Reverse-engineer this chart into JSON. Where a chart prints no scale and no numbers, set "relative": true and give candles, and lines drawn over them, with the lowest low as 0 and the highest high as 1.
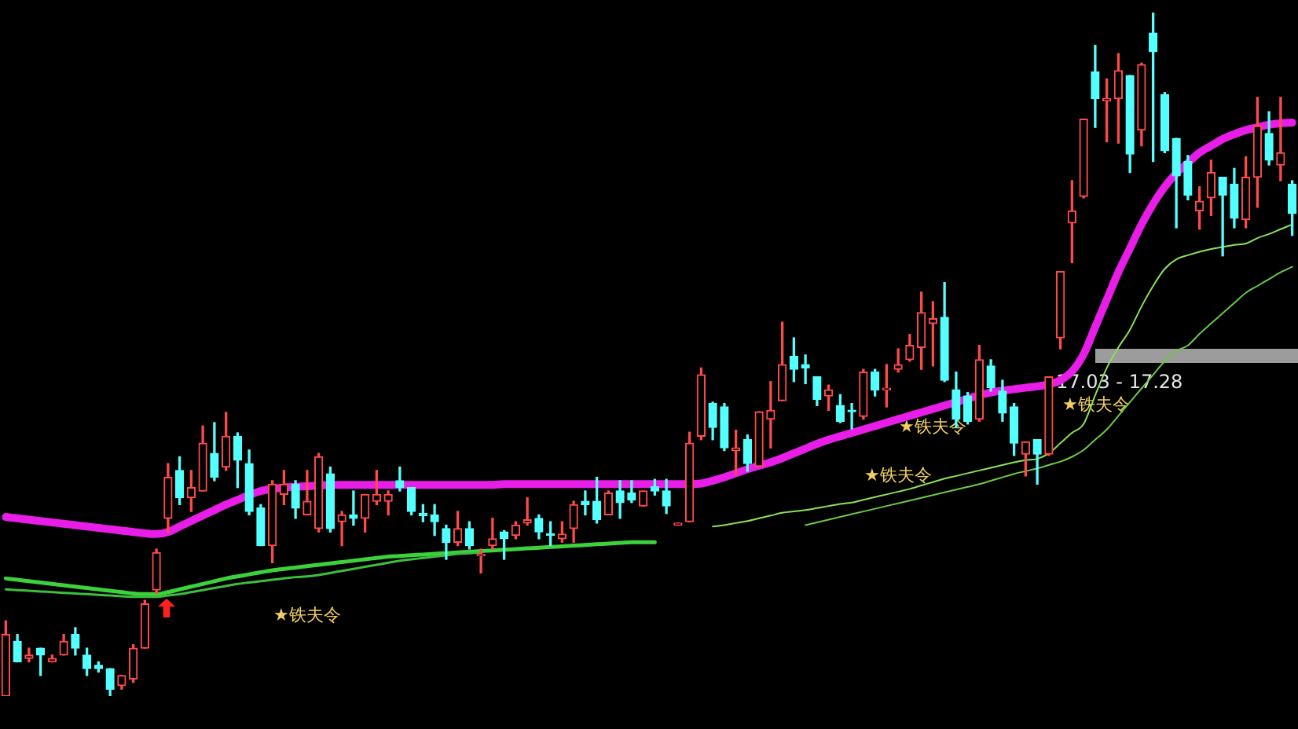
{
  "chart_data": {
    "type": "candlestick",
    "relative": true,
    "legend": false,
    "marker": "none",
    "categories": [
      null,
      null,
      null,
      null,
      null,
      null,
      null,
      null,
      null,
      null,
      null,
      null,
      null,
      null,
      null,
      null,
      null,
      null,
      null,
      null,
      null,
      null,
      null,
      null,
      null,
      null,
      null,
      null,
      null,
      null,
      null,
      null,
      null,
      null,
      null,
      null,
      null,
      null,
      null,
      null,
      null,
      null,
      null,
      null,
      null,
      null,
      null,
      null,
      null,
      null,
      null,
      null,
      null,
      null,
      null,
      null,
      null,
      null,
      null,
      null,
      null,
      null,
      null,
      null,
      null,
      null,
      null,
      null,
      null,
      null,
      null,
      null,
      null,
      null,
      null,
      null,
      null,
      null,
      null,
      null,
      null,
      null,
      null,
      null,
      null,
      null,
      null,
      null,
      null,
      null,
      null,
      null,
      null,
      null,
      null,
      null,
      null,
      null,
      null,
      null,
      null,
      null,
      null,
      null,
      null,
      null,
      null,
      null,
      null,
      null,
      null,
      null
    ],
    "ohlc": [
      [
        0,
        0.11,
        0,
        0.09
      ],
      [
        0.08,
        0.09,
        0.05,
        0.05
      ],
      [
        0.055,
        0.07,
        0.05,
        0.06
      ],
      [
        0.07,
        0.07,
        0.03,
        0.06
      ],
      [
        0.05,
        0.06,
        0.05,
        0.055
      ],
      [
        0.06,
        0.09,
        0.06,
        0.08
      ],
      [
        0.09,
        0.1,
        0.06,
        0.07
      ],
      [
        0.06,
        0.07,
        0.03,
        0.04
      ],
      [
        0.045,
        0.05,
        0.035,
        0.04
      ],
      [
        0.04,
        0.04,
        0,
        0.01
      ],
      [
        0.015,
        0.03,
        0.01,
        0.03
      ],
      [
        0.025,
        0.075,
        0.02,
        0.07
      ],
      [
        0.07,
        0.14,
        0.07,
        0.135
      ],
      [
        0.155,
        0.215,
        0.15,
        0.21
      ],
      [
        0.26,
        0.34,
        0.24,
        0.32
      ],
      [
        0.33,
        0.35,
        0.28,
        0.29
      ],
      [
        0.29,
        0.33,
        0.27,
        0.305
      ],
      [
        0.3,
        0.395,
        0.3,
        0.37
      ],
      [
        0.355,
        0.4,
        0.315,
        0.32
      ],
      [
        0.335,
        0.415,
        0.33,
        0.38
      ],
      [
        0.38,
        0.385,
        0.305,
        0.345
      ],
      [
        0.34,
        0.36,
        0.265,
        0.27
      ],
      [
        0.275,
        0.28,
        0.22,
        0.22
      ],
      [
        0.22,
        0.315,
        0.195,
        0.31
      ],
      [
        0.295,
        0.33,
        0.28,
        0.31
      ],
      [
        0.31,
        0.315,
        0.26,
        0.275
      ],
      [
        0.265,
        0.33,
        0.265,
        0.285
      ],
      [
        0.245,
        0.355,
        0.24,
        0.35
      ],
      [
        0.325,
        0.335,
        0.24,
        0.245
      ],
      [
        0.255,
        0.27,
        0.22,
        0.265
      ],
      [
        0.265,
        0.3,
        0.25,
        0.26
      ],
      [
        0.26,
        0.295,
        0.24,
        0.295
      ],
      [
        0.285,
        0.33,
        0.28,
        0.295
      ],
      [
        0.285,
        0.3,
        0.265,
        0.295
      ],
      [
        0.315,
        0.335,
        0.3,
        0.305
      ],
      [
        0.305,
        0.305,
        0.265,
        0.27
      ],
      [
        0.267,
        0.28,
        0.255,
        0.264
      ],
      [
        0.265,
        0.28,
        0.235,
        0.255
      ],
      [
        0.245,
        0.25,
        0.2,
        0.225
      ],
      [
        0.225,
        0.27,
        0.22,
        0.245
      ],
      [
        0.245,
        0.255,
        0.215,
        0.22
      ],
      [
        0.205,
        0.215,
        0.18,
        0.207
      ],
      [
        0.22,
        0.26,
        0.215,
        0.23
      ],
      [
        0.24,
        0.242,
        0.2,
        0.23
      ],
      [
        0.235,
        0.255,
        0.23,
        0.25
      ],
      [
        0.253,
        0.29,
        0.25,
        0.258
      ],
      [
        0.26,
        0.265,
        0.23,
        0.24
      ],
      [
        0.237,
        0.255,
        0.22,
        0.235
      ],
      [
        0.23,
        0.255,
        0.225,
        0.237
      ],
      [
        0.245,
        0.285,
        0.225,
        0.28
      ],
      [
        0.285,
        0.3,
        0.265,
        0.28
      ],
      [
        0.285,
        0.32,
        0.253,
        0.258
      ],
      [
        0.265,
        0.3,
        0.265,
        0.297
      ],
      [
        0.3,
        0.315,
        0.26,
        0.283
      ],
      [
        0.297,
        0.315,
        0.283,
        0.287
      ],
      [
        0.278,
        0.3,
        0.278,
        0.3
      ],
      [
        0.306,
        0.317,
        0.294,
        0.3
      ],
      [
        0.3,
        0.317,
        0.267,
        0.278
      ],
      [
        0.25,
        0.253,
        0.25,
        0.253
      ],
      [
        0.255,
        0.386,
        0.255,
        0.37
      ],
      [
        0.38,
        0.48,
        0.375,
        0.47
      ],
      [
        0.428,
        0.43,
        0.375,
        0.393
      ],
      [
        0.423,
        0.428,
        0.359,
        0.363
      ],
      [
        0.359,
        0.389,
        0.324,
        0.363
      ],
      [
        0.375,
        0.382,
        0.329,
        0.34
      ],
      [
        0.336,
        0.416,
        0.336,
        0.416
      ],
      [
        0.405,
        0.46,
        0.363,
        0.418
      ],
      [
        0.432,
        0.547,
        0.432,
        0.485
      ],
      [
        0.497,
        0.524,
        0.46,
        0.478
      ],
      [
        0.485,
        0.499,
        0.457,
        0.48
      ],
      [
        0.467,
        0.467,
        0.425,
        0.434
      ],
      [
        0.439,
        0.455,
        0.418,
        0.448
      ],
      [
        0.425,
        0.441,
        0.4,
        0.402
      ],
      [
        0.418,
        0.428,
        0.391,
        0.416
      ],
      [
        0.409,
        0.478,
        0.405,
        0.474
      ],
      [
        0.474,
        0.478,
        0.439,
        0.448
      ],
      [
        0.448,
        0.485,
        0.423,
        0.45
      ],
      [
        0.478,
        0.508,
        0.474,
        0.485
      ],
      [
        0.492,
        0.529,
        0.49,
        0.513
      ],
      [
        0.51,
        0.591,
        0.478,
        0.561
      ],
      [
        0.545,
        0.577,
        0.483,
        0.552
      ],
      [
        0.554,
        0.605,
        0.46,
        0.462
      ],
      [
        0.448,
        0.474,
        0.393,
        0.405
      ],
      [
        0.439,
        0.444,
        0.398,
        0.402
      ],
      [
        0.405,
        0.513,
        0.402,
        0.492
      ],
      [
        0.483,
        0.492,
        0.446,
        0.451
      ],
      [
        0.446,
        0.462,
        0.402,
        0.414
      ],
      [
        0.423,
        0.428,
        0.352,
        0.37
      ],
      [
        0.354,
        0.372,
        0.322,
        0.372
      ],
      [
        0.375,
        0.375,
        0.31,
        0.354
      ],
      [
        0.354,
        0.467,
        0.352,
        0.467
      ],
      [
        0.524,
        0.621,
        0.508,
        0.621
      ],
      [
        0.692,
        0.754,
        0.634,
        0.71
      ],
      [
        0.731,
        0.844,
        0.729,
        0.844
      ],
      [
        0.913,
        0.952,
        0.832,
        0.874
      ],
      [
        0.871,
        0.903,
        0.811,
        0.874
      ],
      [
        0.874,
        0.94,
        0.809,
        0.915
      ],
      [
        0.908,
        0.908,
        0.766,
        0.793
      ],
      [
        0.828,
        0.926,
        0.805,
        0.924
      ],
      [
        0.97,
        1,
        0.782,
        0.943
      ],
      [
        0.88,
        0.883,
        0.795,
        0.798
      ],
      [
        0.816,
        0.816,
        0.685,
        0.761
      ],
      [
        0.782,
        0.791,
        0.726,
        0.733
      ],
      [
        0.71,
        0.745,
        0.683,
        0.724
      ],
      [
        0.729,
        0.784,
        0.703,
        0.766
      ],
      [
        0.759,
        0.759,
        0.644,
        0.733
      ],
      [
        0.749,
        0.772,
        0.685,
        0.699
      ],
      [
        0.697,
        0.789,
        0.685,
        0.759
      ],
      [
        0.759,
        0.876,
        0.715,
        0.834
      ],
      [
        0.823,
        0.855,
        0.777,
        0.784
      ],
      [
        0.777,
        0.876,
        0.754,
        0.795
      ],
      [
        0.749,
        0.754,
        0.674,
        0.706
      ]
    ],
    "series": [
      {
        "type": "line",
        "color": "#e81ee8",
        "values": [
          0.262,
          0.26,
          0.258,
          0.256,
          0.254,
          0.252,
          0.25,
          0.248,
          0.246,
          0.244,
          0.242,
          0.24,
          0.238,
          0.237,
          0.24,
          0.248,
          0.256,
          0.264,
          0.272,
          0.28,
          0.287,
          0.294,
          0.3,
          0.303,
          0.305,
          0.306,
          0.307,
          0.308,
          0.309,
          0.309,
          0.309,
          0.309,
          0.309,
          0.309,
          0.309,
          0.309,
          0.309,
          0.309,
          0.309,
          0.309,
          0.309,
          0.309,
          0.309,
          0.31,
          0.31,
          0.31,
          0.31,
          0.31,
          0.31,
          0.31,
          0.31,
          0.31,
          0.31,
          0.31,
          0.31,
          0.31,
          0.31,
          0.31,
          0.31,
          0.31,
          0.311,
          0.315,
          0.32,
          0.326,
          0.332,
          0.337,
          0.342,
          0.348,
          0.355,
          0.362,
          0.369,
          0.375,
          0.38,
          0.385,
          0.39,
          0.395,
          0.4,
          0.405,
          0.41,
          0.415,
          0.42,
          0.425,
          0.43,
          0.435,
          0.44,
          0.444,
          0.447,
          0.449,
          0.451,
          0.453,
          0.456,
          0.462,
          0.475,
          0.5,
          0.54,
          0.58,
          0.62,
          0.655,
          0.69,
          0.72,
          0.745,
          0.765,
          0.78,
          0.795,
          0.805,
          0.815,
          0.822,
          0.828,
          0.832,
          0.836,
          0.838,
          0.839
        ]
      },
      {
        "type": "line",
        "color": "#3cd23c",
        "values": [
          0.172,
          0.17,
          0.168,
          0.166,
          0.164,
          0.162,
          0.16,
          0.158,
          0.156,
          0.154,
          0.152,
          0.15,
          0.149,
          0.149,
          0.152,
          0.156,
          0.16,
          0.164,
          0.168,
          0.172,
          0.175,
          0.178,
          0.181,
          0.184,
          0.186,
          0.188,
          0.19,
          0.192,
          0.194,
          0.196,
          0.198,
          0.2,
          0.202,
          0.204,
          0.205,
          0.206,
          0.207,
          0.208,
          0.209,
          0.21,
          0.211,
          0.212,
          0.213,
          0.214,
          0.215,
          0.216,
          0.217,
          0.218,
          0.219,
          0.22,
          0.221,
          0.222,
          0.223,
          0.224,
          0.225,
          0.225,
          0.225,
          null,
          null,
          null,
          null,
          null,
          null,
          null,
          null,
          null,
          null,
          null,
          null,
          null,
          null,
          null,
          null,
          null,
          null,
          null,
          null,
          null,
          null,
          null,
          null,
          null,
          null,
          null,
          null,
          null,
          null,
          null,
          null,
          null,
          null,
          null,
          null,
          null,
          null,
          null,
          null,
          null,
          null,
          null,
          null,
          null,
          null,
          null,
          null,
          null,
          null,
          null,
          null,
          null,
          null,
          null
        ]
      },
      {
        "type": "line",
        "color": "#3cbf3c",
        "values": [
          0.156,
          0.155,
          0.154,
          0.153,
          0.152,
          0.151,
          0.15,
          0.149,
          0.148,
          0.147,
          0.146,
          0.145,
          0.145,
          0.145,
          0.147,
          0.149,
          0.152,
          0.155,
          0.158,
          0.161,
          0.164,
          0.166,
          0.168,
          0.17,
          0.172,
          0.174,
          0.175,
          0.177,
          0.18,
          0.183,
          0.186,
          0.189,
          0.192,
          0.195,
          0.198,
          0.2,
          0.202,
          0.204,
          0.206,
          0.208,
          0.209,
          0.21,
          null,
          null,
          null,
          null,
          null,
          null,
          null,
          null,
          null,
          null,
          null,
          null,
          null,
          null,
          null,
          null,
          null,
          null,
          null,
          null,
          null,
          null,
          null,
          null,
          null,
          null,
          null,
          null,
          null,
          null,
          null,
          null,
          null,
          null,
          null,
          null,
          null,
          null,
          null,
          null,
          null,
          null,
          null,
          null,
          null,
          null,
          null,
          null,
          null,
          null,
          null,
          null,
          null,
          null,
          null,
          null,
          null,
          null,
          null,
          null,
          null,
          null,
          null,
          null,
          null,
          null,
          null,
          null,
          null,
          null
        ]
      },
      {
        "type": "line",
        "color": "#8ee05a",
        "values": [
          null,
          null,
          null,
          null,
          null,
          null,
          null,
          null,
          null,
          null,
          null,
          null,
          null,
          null,
          null,
          null,
          null,
          null,
          null,
          null,
          null,
          null,
          null,
          null,
          null,
          null,
          null,
          null,
          null,
          null,
          null,
          null,
          null,
          null,
          null,
          null,
          null,
          null,
          null,
          null,
          null,
          null,
          null,
          null,
          null,
          null,
          null,
          null,
          null,
          null,
          null,
          null,
          null,
          null,
          null,
          null,
          null,
          null,
          null,
          null,
          null,
          0.248,
          0.25,
          0.253,
          0.256,
          0.26,
          0.264,
          0.268,
          0.27,
          0.272,
          0.275,
          0.278,
          0.281,
          0.283,
          0.287,
          0.291,
          0.295,
          0.299,
          0.303,
          0.308,
          0.313,
          0.318,
          0.322,
          0.326,
          0.33,
          0.334,
          0.338,
          0.342,
          0.345,
          0.347,
          0.355,
          0.37,
          0.385,
          0.398,
          0.44,
          0.48,
          0.51,
          0.536,
          0.57,
          0.6,
          0.625,
          0.639,
          0.645,
          0.65,
          0.654,
          0.657,
          0.66,
          0.662,
          0.67,
          0.676,
          0.683,
          0.69
        ]
      },
      {
        "type": "line",
        "color": "#6cc84a",
        "values": [
          null,
          null,
          null,
          null,
          null,
          null,
          null,
          null,
          null,
          null,
          null,
          null,
          null,
          null,
          null,
          null,
          null,
          null,
          null,
          null,
          null,
          null,
          null,
          null,
          null,
          null,
          null,
          null,
          null,
          null,
          null,
          null,
          null,
          null,
          null,
          null,
          null,
          null,
          null,
          null,
          null,
          null,
          null,
          null,
          null,
          null,
          null,
          null,
          null,
          null,
          null,
          null,
          null,
          null,
          null,
          null,
          null,
          null,
          null,
          null,
          null,
          null,
          null,
          null,
          null,
          null,
          null,
          null,
          null,
          0.25,
          0.254,
          0.258,
          0.262,
          0.266,
          0.27,
          0.274,
          0.278,
          0.282,
          0.286,
          0.29,
          0.294,
          0.298,
          0.302,
          0.306,
          0.31,
          0.315,
          0.32,
          0.325,
          0.329,
          0.333,
          0.338,
          0.343,
          0.35,
          0.36,
          0.375,
          0.39,
          0.41,
          0.43,
          0.45,
          0.47,
          0.49,
          0.505,
          0.513,
          0.53,
          0.545,
          0.56,
          0.575,
          0.59,
          0.6,
          0.61,
          0.62,
          0.628
        ]
      }
    ],
    "annotations": [
      "★铁夫令",
      "★铁夫令",
      "★铁夫令",
      "★铁夫令",
      "17.03 - 17.28"
    ]
  }
}
